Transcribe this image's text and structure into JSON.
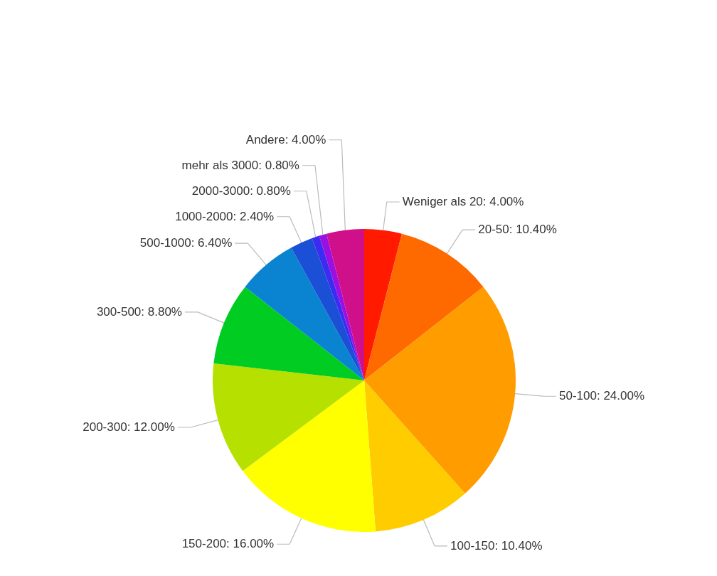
{
  "chart_data": {
    "type": "pie",
    "categories": [
      "Weniger als 20",
      "20-50",
      "50-100",
      "100-150",
      "150-200",
      "200-300",
      "300-500",
      "500-1000",
      "1000-2000",
      "2000-3000",
      "mehr als 3000",
      "Andere"
    ],
    "values": [
      4.0,
      10.4,
      24.0,
      10.4,
      16.0,
      12.0,
      8.8,
      6.4,
      2.4,
      0.8,
      0.8,
      4.0
    ],
    "value_labels": [
      "4.00%",
      "10.40%",
      "24.00%",
      "10.40%",
      "16.00%",
      "12.00%",
      "8.80%",
      "6.40%",
      "2.40%",
      "0.80%",
      "0.80%",
      "4.00%"
    ],
    "colors": [
      "#ff1a00",
      "#ff6a00",
      "#ff9c00",
      "#ffcc00",
      "#ffff00",
      "#b5e000",
      "#00cc22",
      "#0a84d0",
      "#1a4fd6",
      "#3a2cf0",
      "#9a10e0",
      "#d0108a"
    ]
  }
}
